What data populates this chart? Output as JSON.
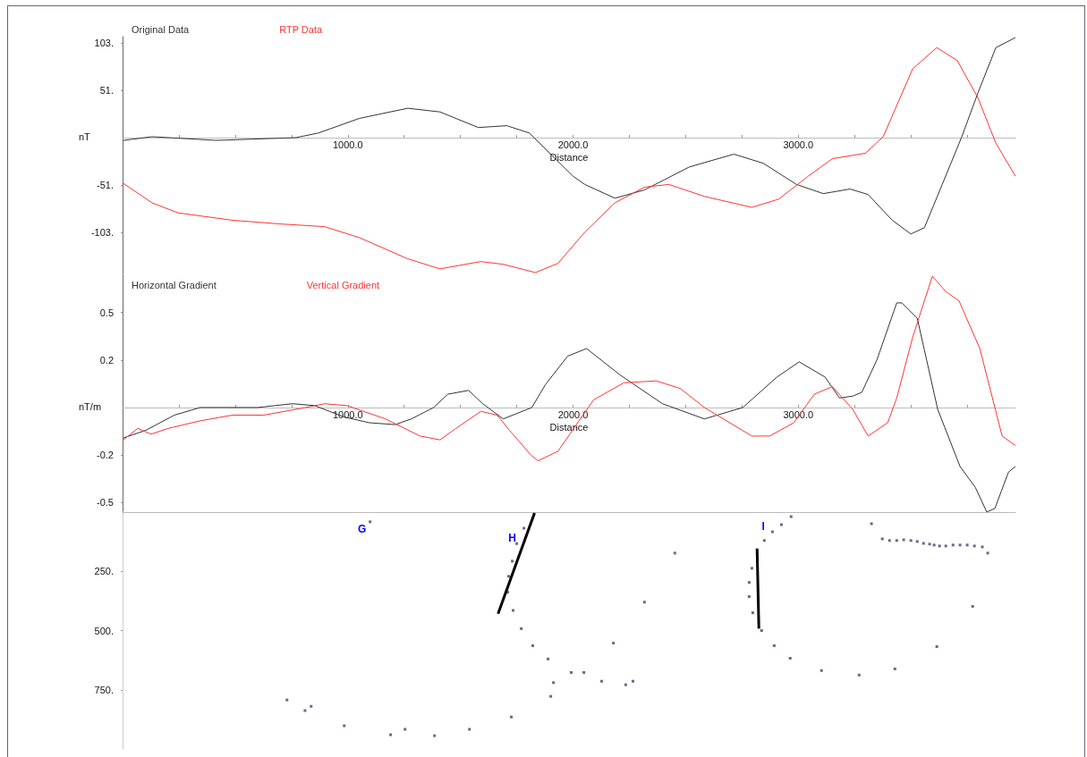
{
  "chart_data": [
    {
      "type": "line",
      "legend": "top left",
      "marker": "none",
      "line_style": "solid",
      "grid": false,
      "xlabel": "Distance",
      "ylabel": "nT",
      "xlim": [
        0,
        3964
      ],
      "ylim": [
        -148,
        110
      ],
      "xticks": [
        {
          "value": 250,
          "label": null
        },
        {
          "value": 500,
          "label": null
        },
        {
          "value": 750,
          "label": null
        },
        {
          "value": 1000,
          "label": "1000.0"
        },
        {
          "value": 1250,
          "label": null
        },
        {
          "value": 1500,
          "label": null
        },
        {
          "value": 1750,
          "label": null
        },
        {
          "value": 2000,
          "label": "2000.0"
        },
        {
          "value": 2250,
          "label": null
        },
        {
          "value": 2500,
          "label": null
        },
        {
          "value": 2750,
          "label": null
        },
        {
          "value": 3000,
          "label": "3000.0"
        },
        {
          "value": 3250,
          "label": null
        },
        {
          "value": 3500,
          "label": null
        },
        {
          "value": 3750,
          "label": null
        }
      ],
      "yticks": [
        {
          "value": 103,
          "label": "103."
        },
        {
          "value": 51.5,
          "label": "51."
        },
        {
          "value": -51.5,
          "label": "-51."
        },
        {
          "value": -103,
          "label": "-103."
        }
      ],
      "series": [
        {
          "name": "Original Data",
          "color": "#333333",
          "x": [
            4,
            131,
            417,
            770,
            869,
            1052,
            1266,
            1409,
            1579,
            1706,
            1806,
            1905,
            2000,
            2052,
            2186,
            2317,
            2516,
            2714,
            2845,
            2992,
            3111,
            3230,
            3310,
            3417,
            3500,
            3560,
            3639,
            3726,
            3798,
            3877,
            3964
          ],
          "values": [
            -3,
            1,
            -3,
            0,
            5,
            21,
            32,
            28,
            11,
            13,
            5,
            -19,
            -42,
            -51,
            -66,
            -57,
            -32,
            -18,
            -28,
            -51,
            -61,
            -56,
            -62,
            -90,
            -105,
            -98,
            -51,
            1,
            49,
            98,
            109
          ]
        },
        {
          "name": "RTP Data",
          "color": "#ff3333",
          "x": [
            4,
            131,
            246,
            488,
            698,
            897,
            1052,
            1266,
            1409,
            1591,
            1690,
            1833,
            1933,
            2052,
            2186,
            2317,
            2425,
            2583,
            2794,
            2913,
            3044,
            3151,
            3298,
            3377,
            3508,
            3615,
            3706,
            3798,
            3877,
            3964
          ],
          "values": [
            -50,
            -71,
            -82,
            -90,
            -94,
            -97,
            -109,
            -132,
            -143,
            -135,
            -138,
            -147,
            -137,
            -103,
            -71,
            -54,
            -51,
            -64,
            -76,
            -67,
            -42,
            -23,
            -17,
            1,
            75,
            98,
            84,
            43,
            -6,
            -42
          ]
        }
      ]
    },
    {
      "type": "line",
      "legend": "top left",
      "marker": "none",
      "line_style": "solid",
      "grid": false,
      "xlabel": "Distance",
      "ylabel": "nT/m",
      "xlim": [
        0,
        3964
      ],
      "ylim": [
        -0.55,
        0.7
      ],
      "xticks": [
        {
          "value": 250,
          "label": null
        },
        {
          "value": 500,
          "label": null
        },
        {
          "value": 750,
          "label": null
        },
        {
          "value": 1000,
          "label": "1000.0"
        },
        {
          "value": 1250,
          "label": null
        },
        {
          "value": 1500,
          "label": null
        },
        {
          "value": 1750,
          "label": null
        },
        {
          "value": 2000,
          "label": "2000.0"
        },
        {
          "value": 2250,
          "label": null
        },
        {
          "value": 2500,
          "label": null
        },
        {
          "value": 2750,
          "label": null
        },
        {
          "value": 3000,
          "label": "3000.0"
        },
        {
          "value": 3250,
          "label": null
        },
        {
          "value": 3500,
          "label": null
        },
        {
          "value": 3750,
          "label": null
        }
      ],
      "yticks": [
        0.5,
        {
          "value": 0.25,
          "label": "0.2"
        },
        {
          "value": -0.25,
          "label": "-0.2"
        },
        -0.5
      ],
      "series": [
        {
          "name": "Horizontal Gradient",
          "color": "#333333",
          "x": [
            4,
            103,
            230,
            345,
            599,
            754,
            853,
            984,
            1095,
            1210,
            1282,
            1381,
            1444,
            1536,
            1599,
            1690,
            1817,
            1877,
            1976,
            2060,
            2210,
            2397,
            2583,
            2754,
            2905,
            3004,
            3119,
            3183,
            3242,
            3282,
            3349,
            3437,
            3460,
            3528,
            3619,
            3718,
            3786,
            3837,
            3873,
            3933,
            3964
          ],
          "values": [
            -0.16,
            -0.12,
            -0.04,
            0,
            0,
            0.02,
            0.01,
            -0.05,
            -0.08,
            -0.09,
            -0.06,
            0,
            0.07,
            0.09,
            0.02,
            -0.06,
            0,
            0.12,
            0.27,
            0.31,
            0.17,
            0.02,
            -0.06,
            0,
            0.16,
            0.24,
            0.16,
            0.05,
            0.06,
            0.08,
            0.25,
            0.55,
            0.55,
            0.47,
            -0.01,
            -0.31,
            -0.42,
            -0.55,
            -0.53,
            -0.34,
            -0.31
          ]
        },
        {
          "name": "Vertical Gradient",
          "color": "#ff3333",
          "x": [
            4,
            67,
            127,
            202,
            345,
            488,
            627,
            813,
            897,
            996,
            1167,
            1321,
            1409,
            1480,
            1591,
            1663,
            1718,
            1813,
            1845,
            1933,
            2091,
            2226,
            2369,
            2476,
            2583,
            2794,
            2873,
            2980,
            3071,
            3151,
            3242,
            3310,
            3397,
            3437,
            3508,
            3595,
            3655,
            3714,
            3806,
            3905,
            3964
          ],
          "values": [
            -0.17,
            -0.11,
            -0.14,
            -0.11,
            -0.07,
            -0.04,
            -0.04,
            0,
            0.02,
            0.01,
            -0.06,
            -0.15,
            -0.17,
            -0.11,
            -0.02,
            -0.04,
            -0.12,
            -0.25,
            -0.28,
            -0.23,
            0.04,
            0.13,
            0.14,
            0.1,
            0,
            -0.15,
            -0.15,
            -0.08,
            0.07,
            0.11,
            -0.01,
            -0.15,
            -0.08,
            0.05,
            0.37,
            0.69,
            0.61,
            0.56,
            0.31,
            -0.15,
            -0.2
          ]
        }
      ]
    },
    {
      "type": "scatter",
      "marker": "square",
      "tick_labels": "y",
      "grid": false,
      "xlim": [
        0,
        3964
      ],
      "ylim": [
        1000,
        0
      ],
      "yticks": [
        {
          "value": 250,
          "label": "250."
        },
        {
          "value": 500,
          "label": "500."
        },
        {
          "value": 750,
          "label": "750."
        }
      ],
      "annotations": [
        {
          "text": "G",
          "x": 1099,
          "y": 41
        },
        {
          "text": "H",
          "x": 1829,
          "y": 4
        },
        {
          "text": "I",
          "x": 2849,
          "y": 120
        }
      ],
      "series": [
        {
          "color": "#4b3f72",
          "x": [
            1099,
            1782,
            1750,
            1730,
            1714,
            1710,
            1734,
            1770,
            1821,
            1889,
            1992,
            1913,
            1901,
            1726,
            1540,
            1385,
            1254,
            1190,
            984,
            837,
            810,
            730,
            2048,
            2127,
            2234,
            2266,
            2179,
            2317,
            2452,
            2968,
            2925,
            2885,
            2849,
            2794,
            2782,
            2782,
            2798,
            2837,
            2893,
            2964,
            3103,
            3270,
            3429,
            3615,
            3774,
            3325,
            3373,
            3405,
            3437,
            3468,
            3500,
            3528,
            3556,
            3583,
            3603,
            3627,
            3655,
            3687,
            3718,
            3750,
            3782,
            3817,
            3841
          ],
          "values": [
            41,
            68,
            133,
            207,
            271,
            338,
            415,
            492,
            564,
            620,
            677,
            720,
            778,
            865,
            917,
            944,
            917,
            940,
            902,
            820,
            838,
            793,
            677,
            714,
            729,
            714,
            553,
            380,
            173,
            19,
            53,
            83,
            120,
            237,
            297,
            357,
            425,
            500,
            564,
            617,
            669,
            688,
            662,
            568,
            398,
            49,
            113,
            120,
            120,
            117,
            120,
            124,
            132,
            135,
            139,
            143,
            143,
            139,
            139,
            139,
            143,
            147,
            173
          ]
        },
        {
          "type": "line",
          "marker": "none",
          "color": "#000000",
          "x": [
            1829,
            1667
          ],
          "values": [
            4,
            429
          ]
        },
        {
          "type": "line",
          "marker": "none",
          "color": "#000000",
          "x": [
            2817,
            2825
          ],
          "values": [
            154,
            492
          ]
        }
      ]
    }
  ]
}
